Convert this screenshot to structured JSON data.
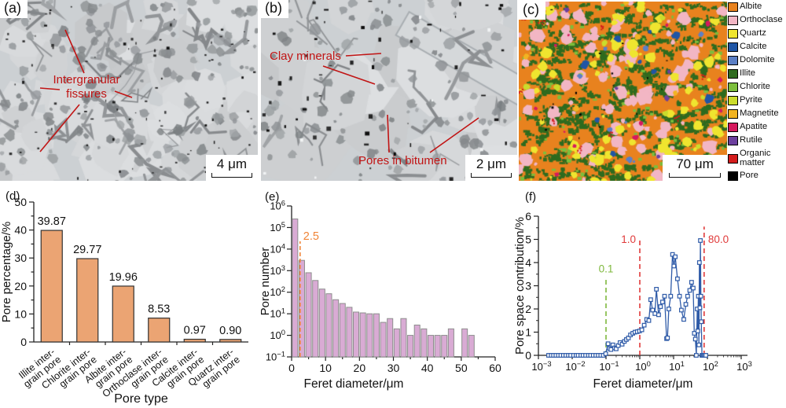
{
  "figure": {
    "panels": {
      "a": {
        "label": "(a)",
        "annotation": "Intergranular fissures",
        "scale_bar": "4 μm"
      },
      "b": {
        "label": "(b)",
        "annotations": [
          "Clay minerals",
          "Pores in bitumen"
        ],
        "scale_bar": "2 μm"
      },
      "c": {
        "label": "(c)",
        "scale_bar": "70 μm",
        "legend": [
          {
            "name": "Albite",
            "color": "#E8821E"
          },
          {
            "name": "Orthoclase",
            "color": "#F2B6C4"
          },
          {
            "name": "Quartz",
            "color": "#EFE52F"
          },
          {
            "name": "Calcite",
            "color": "#1F55A5"
          },
          {
            "name": "Dolomite",
            "color": "#5C80C6"
          },
          {
            "name": "Illite",
            "color": "#2F6B1F"
          },
          {
            "name": "Chlorite",
            "color": "#7CBE3C"
          },
          {
            "name": "Pyrite",
            "color": "#CBDC2C"
          },
          {
            "name": "Magnetite",
            "color": "#F2B422"
          },
          {
            "name": "Apatite",
            "color": "#D6195E"
          },
          {
            "name": "Rutile",
            "color": "#6C3F9E"
          },
          {
            "name": "Organic matter",
            "color": "#D41C1C"
          },
          {
            "name": "Pore",
            "color": "#000000"
          }
        ]
      },
      "d": {
        "label": "(d)"
      },
      "e": {
        "label": "(e)"
      },
      "f": {
        "label": "(f)"
      }
    },
    "colors": {
      "annotation_red": "#C11414",
      "dash_orange": "#F08437",
      "dash_green": "#7FB83E",
      "dash_red": "#E03A3A",
      "line_blue": "#2F5BA8"
    }
  },
  "chart_data": [
    {
      "id": "d",
      "type": "bar",
      "xlabel": "Pore type",
      "ylabel": "Pore percentage/%",
      "ylim": [
        0,
        50
      ],
      "y_ticks": [
        0,
        10,
        20,
        30,
        40,
        50
      ],
      "categories": [
        "Illite inter-grain pore",
        "Chlorite inter-grain pore",
        "Albite inter-grain pore",
        "Orthoclase inter-grain pore",
        "Calcite inter-grain pore",
        "Quartz inter-grain pore"
      ],
      "category_lines": [
        [
          "Illite inter-",
          "grain pore"
        ],
        [
          "Chlorite inter-",
          "grain pore"
        ],
        [
          "Albite inter-",
          "grain pore"
        ],
        [
          "Orthoclase inter-",
          "grain pore"
        ],
        [
          "Calcite inter-",
          "grain pore"
        ],
        [
          "Quartz inter-",
          "grain pore"
        ]
      ],
      "values": [
        39.87,
        29.77,
        19.96,
        8.53,
        0.97,
        0.9
      ],
      "value_labels": [
        "39.87",
        "29.77",
        "19.96",
        "8.53",
        "0.97",
        "0.90"
      ],
      "bar_color": "#EBA473",
      "bar_border": "#333333"
    },
    {
      "id": "e",
      "type": "bar",
      "xlabel": "Feret diameter/μm",
      "ylabel": "Pore number",
      "xlim": [
        0,
        60
      ],
      "x_ticks": [
        0,
        10,
        20,
        30,
        40,
        50,
        60
      ],
      "ylog_exponents": [
        -1,
        0,
        1,
        2,
        3,
        4,
        5,
        6
      ],
      "bin_start": 0,
      "bin_width": 2,
      "counts": [
        250000,
        3000,
        800,
        350,
        140,
        85,
        45,
        30,
        20,
        12,
        11,
        10,
        10,
        4,
        6,
        2,
        6,
        1,
        3,
        2,
        1,
        1,
        1,
        2,
        0,
        2,
        1
      ],
      "bar_color": "#D9ABD4",
      "bar_border": "#8E8E8E",
      "marker_line": {
        "x": 2.5,
        "label": "2.5",
        "color": "#F08437"
      }
    },
    {
      "id": "f",
      "type": "line",
      "xlabel": "Feret diameter/μm",
      "ylabel": "Pore space contribution/%",
      "xlog_exponents": [
        -3,
        -2,
        -1,
        0,
        1,
        2,
        3
      ],
      "ylim": [
        0,
        6
      ],
      "y_ticks": [
        0,
        1,
        2,
        3,
        4,
        5,
        6
      ],
      "line_color": "#2F5BA8",
      "marker_lines": [
        {
          "x": 0.1,
          "label": "0.1",
          "color": "#7FB83E",
          "top": 3.3
        },
        {
          "x": 1.0,
          "label": "1.0",
          "color": "#E03A3A",
          "top": 5.0
        },
        {
          "x": 80,
          "label": "80.0",
          "color": "#E03A3A",
          "top": 5.55
        }
      ],
      "points": [
        [
          0.002,
          0
        ],
        [
          0.0024,
          0
        ],
        [
          0.0028,
          0
        ],
        [
          0.0033,
          0
        ],
        [
          0.0039,
          0
        ],
        [
          0.0046,
          0
        ],
        [
          0.0055,
          0
        ],
        [
          0.0065,
          0
        ],
        [
          0.0077,
          0
        ],
        [
          0.009,
          0
        ],
        [
          0.011,
          0
        ],
        [
          0.013,
          0
        ],
        [
          0.015,
          0
        ],
        [
          0.018,
          0
        ],
        [
          0.021,
          0
        ],
        [
          0.025,
          0
        ],
        [
          0.03,
          0
        ],
        [
          0.035,
          0
        ],
        [
          0.042,
          0
        ],
        [
          0.05,
          0
        ],
        [
          0.059,
          0
        ],
        [
          0.07,
          0
        ],
        [
          0.083,
          0
        ],
        [
          0.098,
          0.07
        ],
        [
          0.115,
          0.5
        ],
        [
          0.125,
          0.3
        ],
        [
          0.14,
          0.25
        ],
        [
          0.16,
          0.45
        ],
        [
          0.18,
          0.32
        ],
        [
          0.2,
          0.28
        ],
        [
          0.23,
          0.42
        ],
        [
          0.26,
          0.55
        ],
        [
          0.3,
          0.48
        ],
        [
          0.35,
          0.6
        ],
        [
          0.4,
          0.68
        ],
        [
          0.46,
          0.75
        ],
        [
          0.53,
          0.88
        ],
        [
          0.62,
          0.95
        ],
        [
          0.72,
          1.0
        ],
        [
          0.84,
          1.02
        ],
        [
          0.98,
          1.05
        ],
        [
          1.15,
          1.1
        ],
        [
          1.35,
          1.3
        ],
        [
          1.6,
          1.55
        ],
        [
          1.85,
          1.5
        ],
        [
          2.1,
          2.4
        ],
        [
          2.4,
          1.95
        ],
        [
          2.8,
          1.8
        ],
        [
          3.1,
          2.85
        ],
        [
          3.6,
          1.75
        ],
        [
          4.1,
          2.1
        ],
        [
          4.7,
          2.3
        ],
        [
          5.4,
          2.55
        ],
        [
          6.2,
          0.72
        ],
        [
          6.6,
          0.75
        ],
        [
          7.2,
          2.0
        ],
        [
          8.2,
          2.55
        ],
        [
          9.3,
          4.35
        ],
        [
          10.2,
          3.85
        ],
        [
          11.2,
          4.25
        ],
        [
          13,
          3.3
        ],
        [
          15,
          2.55
        ],
        [
          17,
          1.95
        ],
        [
          20,
          1.55
        ],
        [
          23,
          2.2
        ],
        [
          26,
          2.55
        ],
        [
          30,
          2.8
        ],
        [
          34,
          3.15
        ],
        [
          38,
          2.9
        ],
        [
          41,
          0.95
        ],
        [
          44,
          0.7
        ],
        [
          47,
          0
        ],
        [
          50,
          2.0
        ],
        [
          52,
          1.05
        ],
        [
          54,
          2.55
        ],
        [
          56,
          0.45
        ],
        [
          58,
          4.0
        ],
        [
          60,
          2.05
        ],
        [
          62,
          4.95
        ],
        [
          64,
          2.55
        ],
        [
          66,
          1.45
        ],
        [
          69,
          0
        ],
        [
          73,
          0
        ],
        [
          78,
          0
        ],
        [
          83,
          0
        ],
        [
          90,
          0
        ]
      ]
    }
  ]
}
